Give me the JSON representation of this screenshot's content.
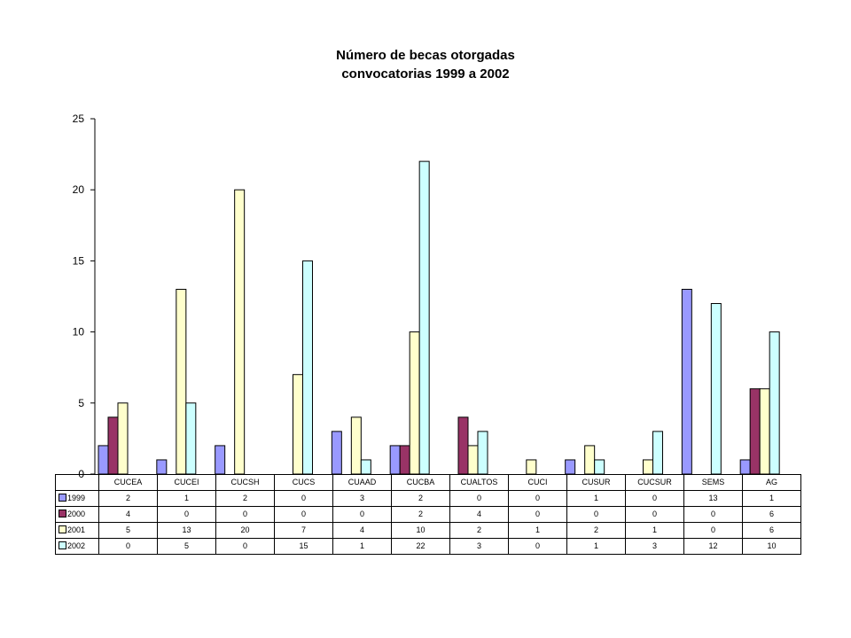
{
  "chart_data": {
    "type": "bar",
    "title_lines": [
      "Número de becas otorgadas",
      "convocatorias 1999 a 2002"
    ],
    "categories": [
      "CUCEA",
      "CUCEI",
      "CUCSH",
      "CUCS",
      "CUAAD",
      "CUCBA",
      "CUALTOS",
      "CUCI",
      "CUSUR",
      "CUCSUR",
      "SEMS",
      "AG"
    ],
    "series": [
      {
        "name": "1999",
        "color": "#9999ff",
        "values": [
          2,
          1,
          2,
          0,
          3,
          2,
          0,
          0,
          1,
          0,
          13,
          1
        ]
      },
      {
        "name": "2000",
        "color": "#993366",
        "values": [
          4,
          0,
          0,
          0,
          0,
          2,
          4,
          0,
          0,
          0,
          0,
          6
        ]
      },
      {
        "name": "2001",
        "color": "#ffffcc",
        "values": [
          5,
          13,
          20,
          7,
          4,
          10,
          2,
          1,
          2,
          1,
          0,
          6
        ]
      },
      {
        "name": "2002",
        "color": "#ccffff",
        "values": [
          0,
          5,
          0,
          15,
          1,
          22,
          3,
          0,
          1,
          3,
          12,
          10
        ]
      }
    ],
    "ylim": [
      0,
      25
    ],
    "yticks": [
      "0",
      "5",
      "10",
      "15",
      "20",
      "25"
    ],
    "grid": false,
    "legend": "data-table"
  }
}
